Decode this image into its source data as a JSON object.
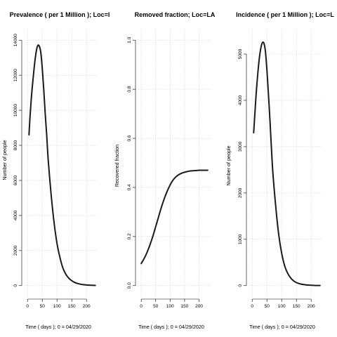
{
  "colors": {
    "curve": "#1a1a1a",
    "grid": "#d3d3d3",
    "axis": "#000000"
  },
  "chart_data": [
    {
      "type": "line",
      "title": "Prevalence ( per 1 Million ); Loc=l",
      "xlabel": "Time ( days ); 0 = 04/29/2020",
      "ylabel": "Number of people",
      "xlim": [
        0,
        230
      ],
      "ylim": [
        0,
        14000
      ],
      "xticks": [
        0,
        50,
        100,
        150,
        200
      ],
      "xtick_labels": [
        "0",
        "50",
        "100",
        "150",
        "200"
      ],
      "yticks": [
        0,
        2000,
        4000,
        6000,
        8000,
        10000,
        12000,
        14000
      ],
      "ytick_labels": [
        "0",
        "2000",
        "4000",
        "6000",
        "8000",
        "10000",
        "12000",
        "14000"
      ],
      "grid": true,
      "series": [
        {
          "x": [
            5,
            6,
            8,
            10,
            13,
            16,
            20,
            25,
            30,
            35,
            40,
            45,
            50,
            55,
            60,
            65,
            70,
            80,
            90,
            100,
            110,
            120,
            130,
            140,
            150,
            160,
            170,
            180,
            190,
            200,
            210,
            220,
            230
          ],
          "y": [
            8600,
            8900,
            9500,
            10000,
            10700,
            11300,
            12000,
            12800,
            13400,
            13700,
            13650,
            13300,
            12400,
            11200,
            9800,
            8600,
            7200,
            5200,
            3600,
            2400,
            1600,
            1000,
            650,
            420,
            280,
            180,
            120,
            80,
            55,
            35,
            25,
            18,
            12
          ]
        }
      ]
    },
    {
      "type": "line",
      "title": "Removed fraction; Loc=LA",
      "xlabel": "Time ( days ); 0 = 04/29/2020",
      "ylabel": "Recovered fraction",
      "xlim": [
        0,
        230
      ],
      "ylim": [
        0,
        1
      ],
      "xticks": [
        0,
        50,
        100,
        150,
        200
      ],
      "xtick_labels": [
        "0",
        "50",
        "100",
        "150",
        "200"
      ],
      "yticks": [
        0,
        0.2,
        0.4,
        0.6,
        0.8,
        1.0
      ],
      "ytick_labels": [
        "0.0",
        "0.2",
        "0.4",
        "0.6",
        "0.8",
        "1.0"
      ],
      "grid": true,
      "series": [
        {
          "x": [
            0,
            10,
            20,
            30,
            40,
            50,
            60,
            70,
            80,
            90,
            100,
            110,
            120,
            130,
            140,
            150,
            160,
            170,
            180,
            190,
            200,
            210,
            220,
            230
          ],
          "y": [
            0.09,
            0.11,
            0.135,
            0.165,
            0.2,
            0.24,
            0.28,
            0.32,
            0.355,
            0.385,
            0.41,
            0.43,
            0.443,
            0.452,
            0.458,
            0.462,
            0.465,
            0.467,
            0.468,
            0.469,
            0.47,
            0.47,
            0.47,
            0.47
          ]
        }
      ]
    },
    {
      "type": "line",
      "title": "Incidence ( per 1 Million ); Loc=L",
      "xlabel": "Time ( days ); 0 = 04/29/2020",
      "ylabel": "Number of people",
      "xlim": [
        0,
        230
      ],
      "ylim": [
        0,
        5300
      ],
      "xticks": [
        0,
        50,
        100,
        150,
        200
      ],
      "xtick_labels": [
        "0",
        "50",
        "100",
        "150",
        "200"
      ],
      "yticks": [
        0,
        1000,
        2000,
        3000,
        4000,
        5000
      ],
      "ytick_labels": [
        "0",
        "1000",
        "2000",
        "3000",
        "4000",
        "5000"
      ],
      "grid": true,
      "series": [
        {
          "x": [
            5,
            6,
            8,
            10,
            13,
            16,
            20,
            25,
            30,
            35,
            40,
            45,
            50,
            55,
            60,
            65,
            70,
            80,
            90,
            100,
            110,
            120,
            130,
            140,
            150,
            160,
            170,
            180,
            190,
            200,
            210,
            220,
            230
          ],
          "y": [
            3300,
            3400,
            3600,
            3800,
            4100,
            4350,
            4650,
            4950,
            5150,
            5250,
            5230,
            5050,
            4650,
            4150,
            3600,
            3000,
            2450,
            1700,
            1100,
            700,
            430,
            270,
            170,
            105,
            65,
            42,
            27,
            18,
            12,
            8,
            5,
            3,
            2
          ]
        }
      ]
    }
  ]
}
